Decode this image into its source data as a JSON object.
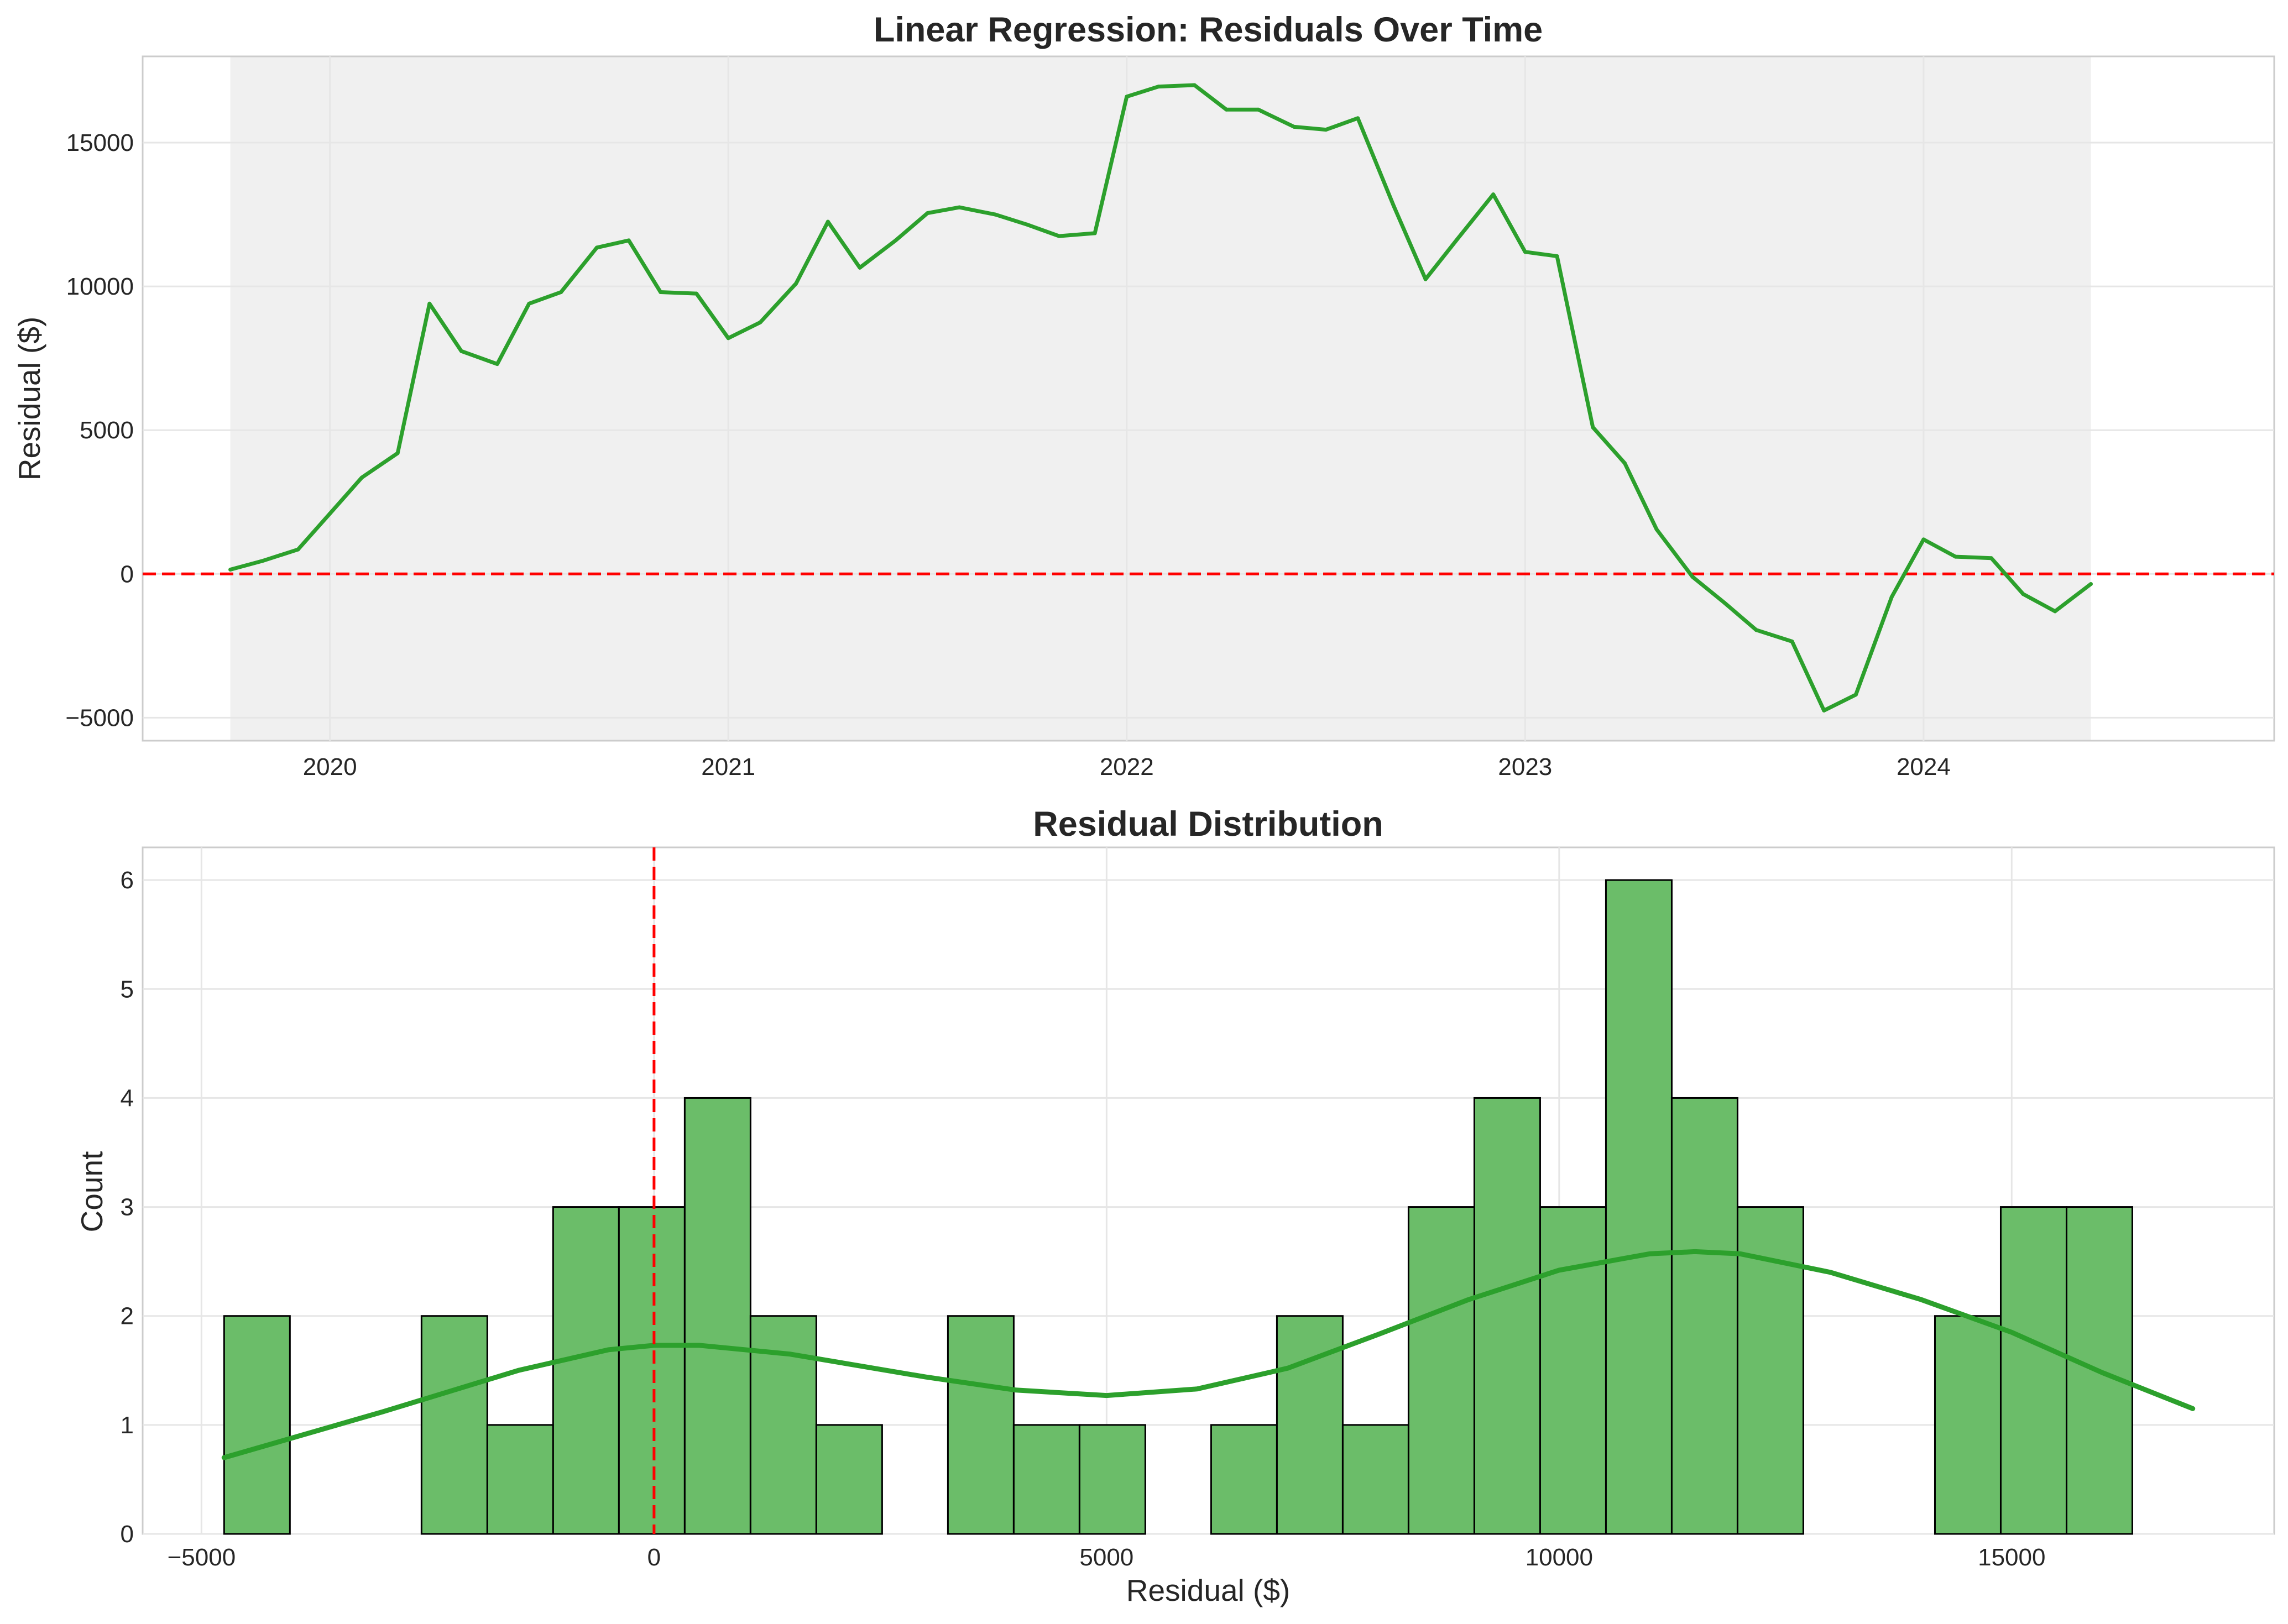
{
  "colors": {
    "line": "#2ca02c",
    "bar_fill": "#6bbd69",
    "bar_edge": "#000000",
    "reference": "#ff0000",
    "shade": "#f0f0f0",
    "grid": "#e6e6e6",
    "spine": "#cccccc",
    "text": "#262626"
  },
  "chart_data": [
    {
      "type": "line",
      "title": "Linear Regression: Residuals Over Time",
      "xlabel": "",
      "ylabel": "Residual ($)",
      "x_ticks": [
        2020,
        2021,
        2022,
        2023,
        2024
      ],
      "y_ticks": [
        -5000,
        0,
        5000,
        10000,
        15000
      ],
      "y_tick_labels": [
        "−5000",
        "0",
        "5000",
        "10000",
        "15000"
      ],
      "xlim": [
        2019.53,
        2024.88
      ],
      "ylim": [
        -5800,
        18000
      ],
      "grid": true,
      "reference_line": {
        "y": 0,
        "style": "dashed"
      },
      "shaded_span": {
        "x_start": 2019.75,
        "x_end": 2024.42
      },
      "series": [
        {
          "x": [
            2019.75,
            2019.83,
            2019.92,
            2020.0,
            2020.08,
            2020.17,
            2020.25,
            2020.33,
            2020.42,
            2020.5,
            2020.58,
            2020.67,
            2020.75,
            2020.83,
            2020.92,
            2021.0,
            2021.08,
            2021.17,
            2021.25,
            2021.33,
            2021.42,
            2021.5,
            2021.58,
            2021.67,
            2021.75,
            2021.83,
            2021.92,
            2022.0,
            2022.08,
            2022.17,
            2022.25,
            2022.33,
            2022.42,
            2022.5,
            2022.58,
            2022.67,
            2022.75,
            2022.83,
            2022.92,
            2023.0,
            2023.08,
            2023.17,
            2023.25,
            2023.33,
            2023.42,
            2023.5,
            2023.58,
            2023.67,
            2023.75,
            2023.83,
            2023.92,
            2024.0,
            2024.08,
            2024.17,
            2024.25,
            2024.33,
            2024.42
          ],
          "y": [
            150,
            450,
            850,
            2100,
            3350,
            4200,
            9400,
            7750,
            7300,
            9400,
            9800,
            11350,
            11600,
            9800,
            9750,
            8200,
            8750,
            10100,
            12250,
            10650,
            11600,
            12550,
            12750,
            12500,
            12150,
            11750,
            11850,
            16600,
            16950,
            17000,
            16150,
            16150,
            15550,
            15450,
            15850,
            12800,
            10250,
            11650,
            13200,
            11200,
            11050,
            5100,
            3850,
            1550,
            -100,
            -1000,
            -1950,
            -2350,
            -4750,
            -4200,
            -800,
            1200,
            600,
            550,
            -700,
            -1300,
            -350
          ]
        }
      ]
    },
    {
      "type": "bar",
      "title": "Residual Distribution",
      "xlabel": "Residual ($)",
      "ylabel": "Count",
      "x_ticks": [
        -5000,
        0,
        5000,
        10000,
        15000
      ],
      "x_tick_labels": [
        "−5000",
        "0",
        "5000",
        "10000",
        "15000"
      ],
      "y_ticks": [
        0,
        1,
        2,
        3,
        4,
        5,
        6
      ],
      "y_tick_labels": [
        "0",
        "1",
        "2",
        "3",
        "4",
        "5",
        "6"
      ],
      "xlim": [
        -5650,
        17900
      ],
      "ylim": [
        0,
        6.3
      ],
      "grid": true,
      "reference_line": {
        "x": 0,
        "style": "dashed"
      },
      "bin_start": -4750,
      "bin_width": 727,
      "values": [
        2,
        0,
        0,
        2,
        1,
        3,
        3,
        4,
        2,
        1,
        0,
        2,
        1,
        1,
        0,
        1,
        2,
        1,
        3,
        4,
        3,
        6,
        4,
        3,
        0,
        0,
        2,
        3,
        3
      ],
      "kde": {
        "x": [
          -4750,
          -3000,
          -1500,
          -500,
          0,
          500,
          1500,
          3000,
          4000,
          5000,
          6000,
          7000,
          8000,
          9000,
          10000,
          11000,
          11500,
          12000,
          13000,
          14000,
          15000,
          16000,
          17000
        ],
        "y": [
          0.7,
          1.12,
          1.5,
          1.69,
          1.73,
          1.73,
          1.65,
          1.44,
          1.32,
          1.27,
          1.33,
          1.52,
          1.83,
          2.15,
          2.42,
          2.57,
          2.59,
          2.57,
          2.4,
          2.15,
          1.85,
          1.48,
          1.15
        ]
      }
    }
  ]
}
